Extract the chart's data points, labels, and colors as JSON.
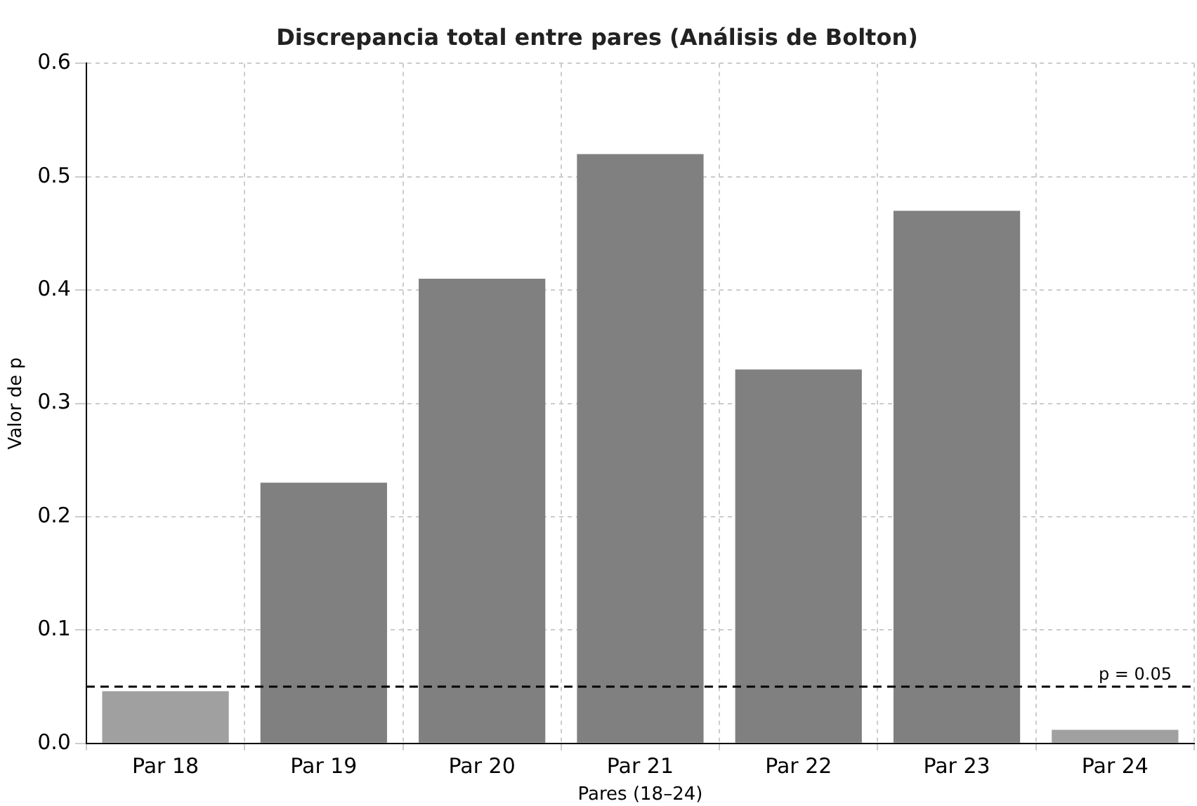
{
  "chart_data": {
    "type": "bar",
    "title": "Discrepancia total entre pares (Análisis de Bolton)",
    "xlabel": "Pares (18–24)",
    "ylabel": "Valor de p",
    "categories": [
      "Par 18",
      "Par 19",
      "Par 20",
      "Par 21",
      "Par 22",
      "Par 23",
      "Par 24"
    ],
    "values": [
      0.046,
      0.23,
      0.41,
      0.52,
      0.33,
      0.47,
      0.012
    ],
    "colors": [
      "#a0a0a0",
      "#808080",
      "#808080",
      "#808080",
      "#808080",
      "#808080",
      "#a0a0a0"
    ],
    "ylim": [
      0,
      0.6
    ],
    "yticks": [
      {
        "value": 0,
        "label": "0.0"
      },
      0.1,
      0.2,
      0.3,
      0.4,
      0.5,
      0.6
    ],
    "grid": true,
    "ref_lines": [
      {
        "axis": "y",
        "value": 0.05,
        "label": "p = 0.05",
        "color": "#000000",
        "line_style": "dashed"
      }
    ]
  }
}
